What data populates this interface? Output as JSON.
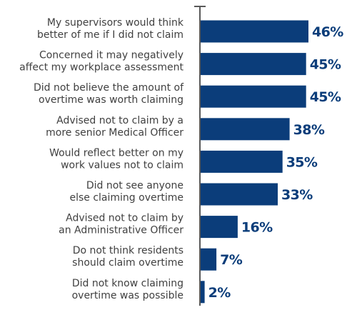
{
  "chart_data": {
    "type": "bar",
    "orientation": "horizontal",
    "title": "",
    "xlabel": "",
    "ylabel": "",
    "categories": [
      [
        "My supervisors would think",
        "better of me if I did not claim"
      ],
      [
        "Concerned it may negatively",
        "affect my workplace assessment"
      ],
      [
        "Did not believe the amount of",
        "overtime was worth claiming"
      ],
      [
        "Advised not to claim by a",
        "more senior Medical Officer"
      ],
      [
        "Would reflect better on my",
        "work values not to claim"
      ],
      [
        "Did not see anyone",
        "else claiming overtime"
      ],
      [
        "Advised not to claim by",
        "an Administrative Officer"
      ],
      [
        "Do not think residents",
        "should claim overtime"
      ],
      [
        "Did not know claiming",
        "overtime was possible"
      ]
    ],
    "values": [
      46,
      45,
      45,
      38,
      35,
      33,
      16,
      7,
      2
    ],
    "value_labels": [
      "46%",
      "45%",
      "45%",
      "38%",
      "35%",
      "33%",
      "16%",
      "7%",
      "2%"
    ],
    "xlim": [
      0,
      50
    ],
    "grid": false,
    "legend": "none",
    "bar_color": "#0b3d7a",
    "label_color": "#404040",
    "axis_color": "#595959"
  }
}
